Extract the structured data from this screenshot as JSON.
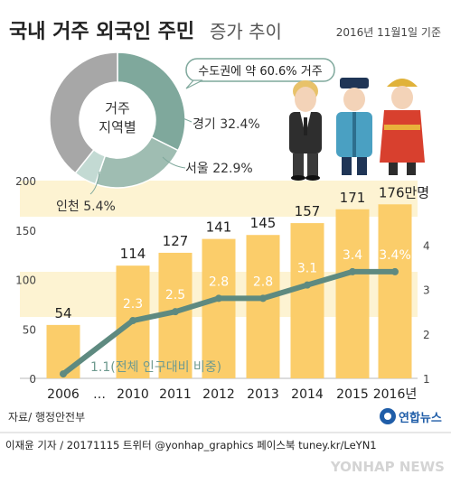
{
  "header": {
    "title_main": "국내 거주 외국인 주민",
    "title_sub": "증가 추이",
    "date_note": "2016년 11월1일 기준"
  },
  "donut": {
    "center_label_1": "거주",
    "center_label_2": "지역별",
    "callout": "수도권에 약 60.6% 거주",
    "slices": [
      {
        "name": "경기",
        "value": 32.4,
        "label": "경기 32.4%",
        "color": "#7fa89c"
      },
      {
        "name": "서울",
        "value": 22.9,
        "label": "서울 22.9%",
        "color": "#9fbdb2"
      },
      {
        "name": "인천",
        "value": 5.4,
        "label": "인천 5.4%",
        "color": "#c3dad3"
      },
      {
        "name": "기타",
        "value": 39.3,
        "label": "",
        "color": "#a7a7a7"
      }
    ]
  },
  "chart_data": {
    "type": "bar",
    "categories": [
      "2006",
      "2010",
      "2011",
      "2012",
      "2013",
      "2014",
      "2015",
      "2016년"
    ],
    "gap_label": "…",
    "series": [
      {
        "values": [
          54,
          114,
          127,
          141,
          145,
          157,
          171,
          176
        ],
        "value_labels": [
          "54",
          "114",
          "127",
          "141",
          "145",
          "157",
          "171",
          "176만명"
        ],
        "axis": "left",
        "color": "#fbcd6a"
      },
      {
        "name": "전체 인구대비 비중",
        "values": [
          1.1,
          2.3,
          2.5,
          2.8,
          2.8,
          3.1,
          3.4,
          3.4
        ],
        "value_labels": [
          "1.1(전체 인구대비 비중)",
          "2.3",
          "2.5",
          "2.8",
          "2.8",
          "3.1",
          "3.4",
          "3.4%"
        ],
        "axis": "right",
        "color": "#5e8a80"
      }
    ],
    "left_ticks": [
      "0",
      "50",
      "100",
      "150",
      "200"
    ],
    "right_ticks": [
      "1",
      "2",
      "3",
      "4"
    ],
    "ylim_left": [
      0,
      200
    ],
    "ylim_right": [
      1,
      4.8
    ],
    "grid": false
  },
  "footer": {
    "source": "자료/ 행정안전부",
    "brand": "연합뉴스",
    "credit": "이재윤 기자 / 20171115  트위터 @yonhap_graphics  페이스북 tuney.kr/LeYN1",
    "watermark": "YONHAP NEWS"
  },
  "colors": {
    "background": "#ffffff",
    "band": "#fdf3d2",
    "bar": "#fbcd6a",
    "line": "#5e8a80",
    "title": "#222222",
    "brand_blue": "#1f5da8"
  },
  "icons": [
    "three-people-illustration-icon",
    "yonhap-logo-icon"
  ]
}
